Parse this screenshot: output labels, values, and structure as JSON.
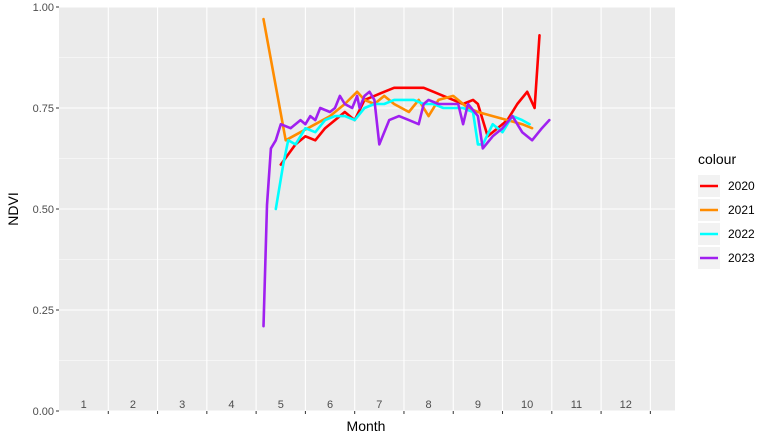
{
  "chart_data": {
    "type": "line",
    "xlabel": "Month",
    "ylabel": "NDVI",
    "ylim": [
      0,
      1
    ],
    "xlim": [
      0.5,
      13.0
    ],
    "yticks": [
      "0.00",
      "0.25",
      "0.50",
      "0.75",
      "1.00"
    ],
    "month_labels": [
      "1",
      "2",
      "3",
      "4",
      "5",
      "6",
      "7",
      "8",
      "9",
      "10",
      "11",
      "12"
    ],
    "legend_title": "colour",
    "legend_position": "right",
    "grid": true,
    "background": "#EBEBEB",
    "series": [
      {
        "name": "2020",
        "color": "#FF0000",
        "x": [
          5.0,
          5.3,
          5.5,
          5.7,
          5.9,
          6.1,
          6.3,
          6.5,
          6.7,
          6.9,
          7.1,
          7.3,
          7.5,
          7.7,
          7.9,
          8.1,
          8.3,
          8.5,
          8.7,
          8.9,
          9.0,
          9.2,
          9.4,
          9.6,
          9.8,
          10.0,
          10.15,
          10.25
        ],
        "y": [
          0.61,
          0.66,
          0.68,
          0.67,
          0.7,
          0.72,
          0.74,
          0.72,
          0.77,
          0.78,
          0.79,
          0.8,
          0.8,
          0.8,
          0.8,
          0.79,
          0.78,
          0.77,
          0.76,
          0.77,
          0.76,
          0.68,
          0.7,
          0.72,
          0.76,
          0.79,
          0.75,
          0.93
        ]
      },
      {
        "name": "2021",
        "color": "#FF8C00",
        "x": [
          4.65,
          5.1,
          5.4,
          5.7,
          6.0,
          6.3,
          6.55,
          6.7,
          6.9,
          7.1,
          7.3,
          7.6,
          7.8,
          8.0,
          8.2,
          8.5,
          8.8,
          9.0,
          9.3,
          9.6,
          9.9,
          10.1
        ],
        "y": [
          0.97,
          0.67,
          0.69,
          0.71,
          0.73,
          0.76,
          0.79,
          0.77,
          0.76,
          0.78,
          0.76,
          0.74,
          0.77,
          0.73,
          0.77,
          0.78,
          0.75,
          0.74,
          0.73,
          0.72,
          0.71,
          0.7
        ]
      },
      {
        "name": "2022",
        "color": "#00FFFF",
        "x": [
          4.9,
          5.05,
          5.15,
          5.3,
          5.5,
          5.7,
          5.9,
          6.1,
          6.3,
          6.5,
          6.7,
          6.9,
          7.1,
          7.3,
          7.5,
          7.7,
          7.9,
          8.1,
          8.3,
          8.5,
          8.7,
          8.9,
          9.0,
          9.1,
          9.3,
          9.5,
          9.7,
          9.9,
          10.05
        ],
        "y": [
          0.5,
          0.61,
          0.67,
          0.66,
          0.7,
          0.69,
          0.72,
          0.73,
          0.73,
          0.72,
          0.75,
          0.76,
          0.76,
          0.77,
          0.77,
          0.77,
          0.76,
          0.76,
          0.75,
          0.75,
          0.75,
          0.74,
          0.66,
          0.66,
          0.71,
          0.69,
          0.73,
          0.72,
          0.71
        ]
      },
      {
        "name": "2023",
        "color": "#A020F0",
        "x": [
          4.65,
          4.72,
          4.8,
          4.9,
          5.0,
          5.2,
          5.4,
          5.5,
          5.6,
          5.7,
          5.8,
          6.0,
          6.1,
          6.2,
          6.3,
          6.45,
          6.55,
          6.6,
          6.7,
          6.8,
          6.9,
          7.0,
          7.2,
          7.4,
          7.6,
          7.8,
          7.9,
          8.0,
          8.2,
          8.4,
          8.6,
          8.7,
          8.8,
          9.0,
          9.1,
          9.3,
          9.5,
          9.7,
          9.9,
          10.1,
          10.3,
          10.45
        ],
        "y": [
          0.21,
          0.51,
          0.65,
          0.67,
          0.71,
          0.7,
          0.72,
          0.71,
          0.73,
          0.72,
          0.75,
          0.74,
          0.75,
          0.78,
          0.76,
          0.75,
          0.78,
          0.75,
          0.78,
          0.79,
          0.77,
          0.66,
          0.72,
          0.73,
          0.72,
          0.71,
          0.76,
          0.77,
          0.76,
          0.76,
          0.76,
          0.71,
          0.76,
          0.73,
          0.65,
          0.68,
          0.7,
          0.73,
          0.69,
          0.67,
          0.7,
          0.72
        ]
      }
    ]
  }
}
